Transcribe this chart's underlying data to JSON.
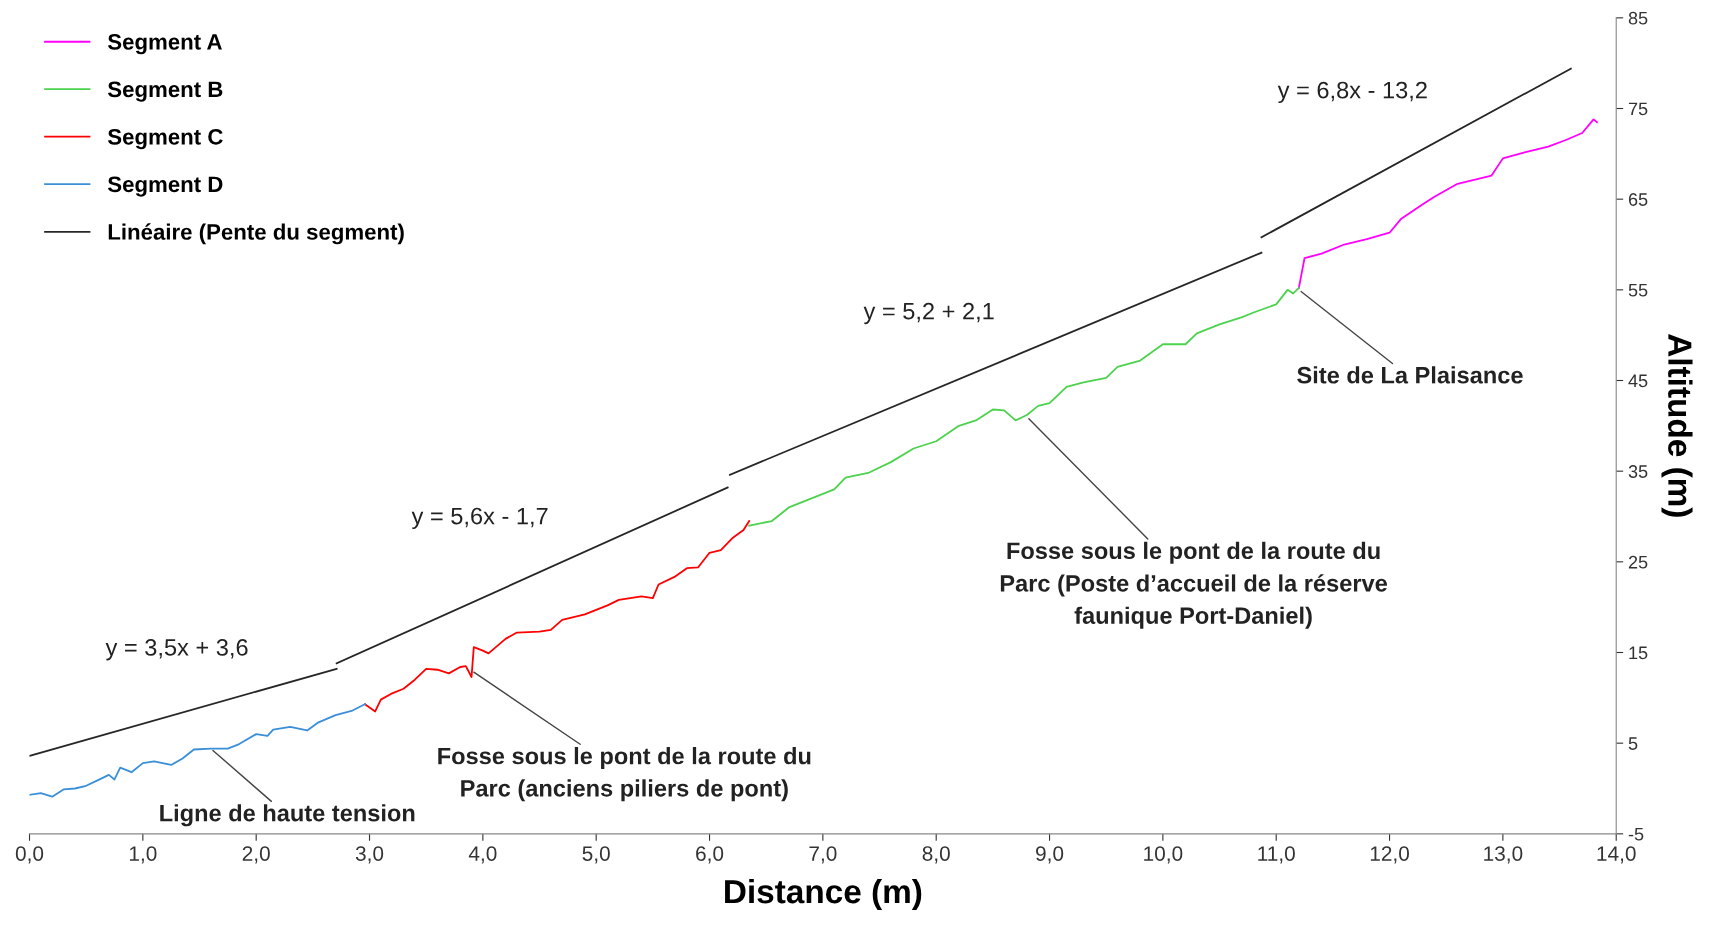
{
  "chart_data": {
    "type": "line",
    "xlabel": "Distance (m)",
    "ylabel": "Altitude (m)",
    "xlim": [
      0,
      14
    ],
    "ylim": [
      -5,
      85
    ],
    "xticks": [
      {
        "value": 0,
        "label": "0,0"
      },
      {
        "value": 1,
        "label": "1,0"
      },
      {
        "value": 2,
        "label": "2,0"
      },
      {
        "value": 3,
        "label": "3,0"
      },
      {
        "value": 4,
        "label": "4,0"
      },
      {
        "value": 5,
        "label": "5,0"
      },
      {
        "value": 6,
        "label": "6,0"
      },
      {
        "value": 7,
        "label": "7,0"
      },
      {
        "value": 8,
        "label": "8,0"
      },
      {
        "value": 9,
        "label": "9,0"
      },
      {
        "value": 10,
        "label": "10,0"
      },
      {
        "value": 11,
        "label": "11,0"
      },
      {
        "value": 12,
        "label": "12,0"
      },
      {
        "value": 13,
        "label": "13,0"
      },
      {
        "value": 14,
        "label": "14,0"
      }
    ],
    "yticks": [
      -5,
      5,
      15,
      25,
      35,
      45,
      55,
      65,
      75,
      85
    ],
    "grid": false,
    "legend": "top left",
    "marker": "none",
    "line_style": "solid",
    "series": [
      {
        "name": "Segment A",
        "color": "#ff00ff",
        "x": [
          11.2,
          11.25,
          11.4,
          11.6,
          11.8,
          12.0,
          12.1,
          12.3,
          12.4,
          12.6,
          12.8,
          12.9,
          13.0,
          13.2,
          13.4,
          13.55,
          13.7,
          13.8,
          13.83
        ],
        "values": [
          55.2,
          58.5,
          59,
          60,
          60.6,
          61.3,
          62.8,
          64.5,
          65.3,
          66.7,
          67.3,
          67.6,
          69.5,
          70.2,
          70.8,
          71.5,
          72.3,
          73.8,
          73.5
        ]
      },
      {
        "name": "Segment B",
        "color": "#4dd24d",
        "x": [
          6.35,
          6.55,
          6.7,
          6.9,
          7.1,
          7.2,
          7.4,
          7.6,
          7.8,
          8.0,
          8.2,
          8.35,
          8.5,
          8.6,
          8.7,
          8.8,
          8.9,
          9.0,
          9.15,
          9.3,
          9.5,
          9.6,
          9.8,
          10.0,
          10.2,
          10.3,
          10.5,
          10.7,
          10.8,
          11.0,
          11.1,
          11.15,
          11.2
        ],
        "values": [
          29,
          29.5,
          31,
          32,
          33,
          34.3,
          34.8,
          36,
          37.5,
          38.3,
          40,
          40.6,
          41.8,
          41.7,
          40.6,
          41.2,
          42.2,
          42.5,
          44.3,
          44.8,
          45.3,
          46.5,
          47.2,
          49,
          49,
          50.2,
          51.2,
          52,
          52.5,
          53.4,
          55,
          54.6,
          55.2
        ]
      },
      {
        "name": "Segment C",
        "color": "#ff0000",
        "x": [
          2.96,
          3.05,
          3.1,
          3.2,
          3.3,
          3.4,
          3.5,
          3.6,
          3.7,
          3.8,
          3.85,
          3.9,
          3.92,
          4.0,
          4.05,
          4.2,
          4.3,
          4.5,
          4.6,
          4.7,
          4.9,
          5.1,
          5.2,
          5.4,
          5.5,
          5.55,
          5.7,
          5.8,
          5.9,
          6.0,
          6.1,
          6.2,
          6.3,
          6.35
        ],
        "values": [
          9.3,
          8.5,
          9.8,
          10.5,
          11,
          12,
          13.2,
          13.1,
          12.7,
          13.4,
          13.5,
          12.3,
          15.6,
          15.2,
          14.9,
          16.5,
          17.2,
          17.3,
          17.5,
          18.6,
          19.2,
          20.2,
          20.8,
          21.2,
          21,
          22.5,
          23.4,
          24.3,
          24.4,
          26,
          26.3,
          27.6,
          28.5,
          29.5
        ]
      },
      {
        "name": "Segment D",
        "color": "#3a8fd8",
        "x": [
          0,
          0.1,
          0.2,
          0.3,
          0.4,
          0.5,
          0.6,
          0.7,
          0.75,
          0.8,
          0.9,
          1.0,
          1.1,
          1.25,
          1.35,
          1.45,
          1.6,
          1.75,
          1.85,
          2.0,
          2.1,
          2.15,
          2.3,
          2.45,
          2.55,
          2.7,
          2.85,
          2.96
        ],
        "values": [
          -0.7,
          -0.5,
          -0.9,
          -0.1,
          0,
          0.3,
          0.9,
          1.5,
          1.0,
          2.3,
          1.8,
          2.8,
          3.0,
          2.6,
          3.3,
          4.3,
          4.4,
          4.4,
          4.9,
          6.0,
          5.8,
          6.5,
          6.8,
          6.4,
          7.3,
          8.1,
          8.6,
          9.3
        ]
      },
      {
        "name": "Linéaire (Pente du segment)",
        "color": "#262626",
        "x": [
          0,
          2.71
        ],
        "values": [
          3.6,
          13.2
        ]
      },
      {
        "color": "#262626",
        "x": [
          2.71,
          6.16
        ],
        "values": [
          13.8,
          33.2
        ]
      },
      {
        "color": "#262626",
        "x": [
          6.18,
          10.87
        ],
        "values": [
          34.6,
          59.1
        ]
      },
      {
        "color": "#262626",
        "x": [
          10.87,
          13.6
        ],
        "values": [
          60.8,
          79.4
        ]
      }
    ],
    "annotations": [
      "y = 3,5x + 3,6",
      "y = 5,6x - 1,7",
      "y = 5,2 + 2,1",
      "y = 6,8x - 13,2",
      {
        "text": "Ligne de haute tension",
        "x": 1.6,
        "y": 4.4
      },
      {
        "text": "Fosse sous le pont de la route du\nParc (anciens piliers de pont)",
        "x": 3.9,
        "y": 13.0
      },
      {
        "text": "Fosse sous le pont de la route du\nParc (Poste d’accueil de la réserve\nfaunique Port-Daniel)",
        "x": 8.8,
        "y": 41.0
      },
      {
        "text": "Site de La Plaisance",
        "x": 11.2,
        "y": 55.0
      }
    ]
  }
}
